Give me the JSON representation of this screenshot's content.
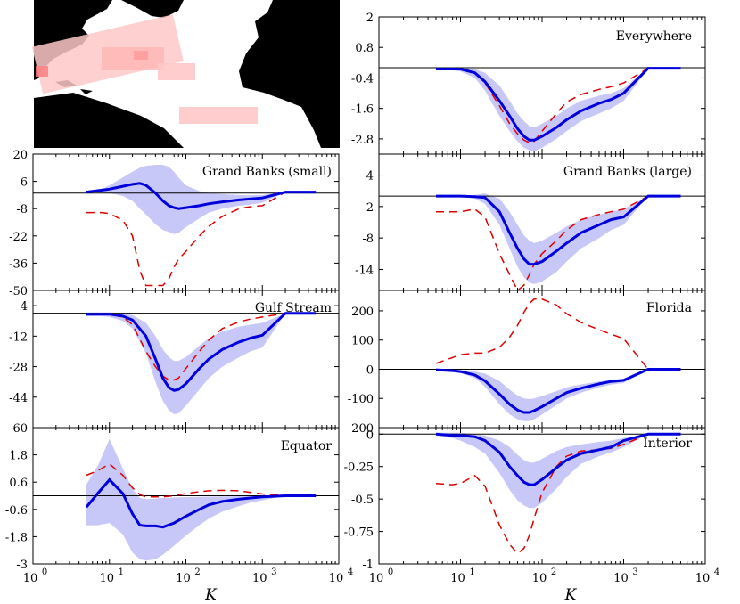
{
  "figure": {
    "map_panel": {
      "land_color": "#000000",
      "sea_color": "#ffffff",
      "region_color": "#ffc8c8",
      "regions": [
        "Everywhere",
        "Grand Banks (large)",
        "Grand Banks (small)",
        "Gulf Stream",
        "Florida",
        "Equator"
      ]
    },
    "colors": {
      "model": "#0000dd",
      "band": "#c8c8f8",
      "dashed": "#dd0000",
      "axis": "#000000"
    },
    "xlabel": "K",
    "x_ticks": [
      {
        "value": 1,
        "base": "10",
        "exp": "0"
      },
      {
        "value": 10,
        "base": "10",
        "exp": "1"
      },
      {
        "value": 100,
        "base": "10",
        "exp": "2"
      },
      {
        "value": 1000,
        "base": "10",
        "exp": "3"
      },
      {
        "value": 10000,
        "base": "10",
        "exp": "4"
      }
    ]
  },
  "chart_data": [
    {
      "type": "line",
      "title": "Everywhere",
      "xscale": "log",
      "xlim": [
        1,
        10000
      ],
      "ylim": [
        -3.4,
        2
      ],
      "yticks": [
        {
          "v": 2,
          "label": "2"
        },
        {
          "v": 0.8,
          "label": "0.8"
        },
        {
          "v": -0.4,
          "label": "-0.4"
        },
        {
          "v": -1.6,
          "label": "-1.6"
        },
        {
          "v": -2.8,
          "label": "-2.8"
        }
      ],
      "x": [
        5,
        8,
        10,
        15,
        20,
        30,
        40,
        50,
        60,
        70,
        80,
        100,
        150,
        200,
        300,
        500,
        700,
        1000,
        2000,
        5000
      ],
      "series": [
        {
          "role": "mean",
          "values": [
            -0.05,
            -0.05,
            -0.05,
            -0.2,
            -0.55,
            -1.3,
            -1.9,
            -2.4,
            -2.7,
            -2.85,
            -2.85,
            -2.7,
            -2.35,
            -2.05,
            -1.7,
            -1.4,
            -1.25,
            -1.0,
            -0.02,
            -0.02
          ]
        },
        {
          "role": "band_upper",
          "values": [
            0,
            0,
            0,
            -0.05,
            -0.2,
            -0.7,
            -1.3,
            -1.8,
            -2.1,
            -2.3,
            -2.35,
            -2.2,
            -1.9,
            -1.6,
            -1.3,
            -1.1,
            -1.0,
            -0.8,
            0,
            0
          ]
        },
        {
          "role": "band_lower",
          "values": [
            -0.1,
            -0.1,
            -0.15,
            -0.4,
            -0.9,
            -1.9,
            -2.5,
            -2.9,
            -3.15,
            -3.25,
            -3.3,
            -3.15,
            -2.8,
            -2.5,
            -2.1,
            -1.8,
            -1.6,
            -1.3,
            -0.05,
            -0.05
          ]
        },
        {
          "role": "dashed",
          "values": [
            -0.05,
            -0.05,
            -0.05,
            -0.2,
            -0.6,
            -1.5,
            -2.2,
            -2.6,
            -2.85,
            -2.95,
            -2.9,
            -2.5,
            -1.8,
            -1.35,
            -1.05,
            -0.85,
            -0.75,
            -0.6,
            -0.02,
            -0.02
          ]
        }
      ]
    },
    {
      "type": "line",
      "title": "Grand Banks (small)",
      "xscale": "log",
      "xlim": [
        1,
        10000
      ],
      "ylim": [
        -50,
        20
      ],
      "yticks": [
        {
          "v": 20,
          "label": "20"
        },
        {
          "v": 6,
          "label": "6"
        },
        {
          "v": -8,
          "label": "-8"
        },
        {
          "v": -22,
          "label": "-22"
        },
        {
          "v": -36,
          "label": "-36"
        },
        {
          "v": -50,
          "label": "-50"
        }
      ],
      "x": [
        5,
        8,
        10,
        15,
        20,
        25,
        30,
        40,
        50,
        60,
        70,
        80,
        100,
        150,
        200,
        300,
        500,
        700,
        1000,
        2000,
        5000
      ],
      "series": [
        {
          "role": "mean",
          "values": [
            0.5,
            1.5,
            2,
            3.5,
            4.5,
            5,
            4,
            0,
            -4,
            -6.5,
            -7.5,
            -8,
            -7.5,
            -6.5,
            -5.5,
            -4.5,
            -3.5,
            -3,
            -2.5,
            0.5,
            0.5
          ]
        },
        {
          "role": "band_upper",
          "values": [
            0.5,
            2,
            4,
            8,
            11,
            13,
            14,
            14.5,
            14.5,
            13.5,
            11,
            8,
            4,
            1,
            0,
            -0.5,
            -1,
            -1.2,
            -1,
            0.5,
            0.5
          ]
        },
        {
          "role": "band_lower",
          "values": [
            0.5,
            0.5,
            0,
            -1.5,
            -4,
            -8,
            -11,
            -16,
            -19,
            -20,
            -21,
            -20.5,
            -17.5,
            -13,
            -10,
            -8,
            -6.5,
            -6,
            -5,
            0.5,
            0.5
          ]
        },
        {
          "role": "dashed",
          "values": [
            -10,
            -10,
            -10.5,
            -14,
            -22,
            -40,
            -47.5,
            -47.5,
            -47.5,
            -44,
            -38,
            -34,
            -30,
            -22,
            -17,
            -12,
            -8,
            -7,
            -6.5,
            0.5,
            0.5
          ]
        }
      ]
    },
    {
      "type": "line",
      "title": "Grand Banks (large)",
      "xscale": "log",
      "xlim": [
        1,
        10000
      ],
      "ylim": [
        -18,
        8
      ],
      "yticks": [
        {
          "v": 4,
          "label": "4"
        },
        {
          "v": -2,
          "label": "-2"
        },
        {
          "v": -8,
          "label": "-8"
        },
        {
          "v": -14,
          "label": "-14"
        }
      ],
      "x": [
        5,
        8,
        10,
        15,
        20,
        30,
        40,
        50,
        60,
        70,
        80,
        100,
        150,
        200,
        300,
        500,
        700,
        1000,
        2000,
        5000
      ],
      "series": [
        {
          "role": "mean",
          "values": [
            0,
            0,
            0,
            -0.1,
            -0.3,
            -3,
            -7,
            -10,
            -12,
            -13,
            -13,
            -12.5,
            -10.5,
            -9,
            -7,
            -5.5,
            -4.5,
            -4,
            0,
            0
          ]
        },
        {
          "role": "band_upper",
          "values": [
            0,
            0,
            0,
            0.2,
            0.5,
            -0.5,
            -3,
            -5.5,
            -7.5,
            -8.5,
            -9,
            -8.5,
            -7,
            -5.8,
            -4.5,
            -3.5,
            -3,
            -2.5,
            0,
            0
          ]
        },
        {
          "role": "band_lower",
          "values": [
            0,
            0,
            -0.1,
            -0.5,
            -1.5,
            -5.5,
            -10,
            -13.5,
            -15.5,
            -16.5,
            -16.8,
            -16.3,
            -14.5,
            -12.5,
            -10,
            -8,
            -6.5,
            -5.5,
            0,
            0
          ]
        },
        {
          "role": "dashed",
          "values": [
            -3,
            -3,
            -3,
            -2.5,
            -4,
            -11,
            -15,
            -18,
            -17,
            -15,
            -13,
            -11,
            -8.5,
            -6.5,
            -4.5,
            -3.5,
            -3,
            -2.5,
            0,
            0
          ]
        }
      ]
    },
    {
      "type": "line",
      "title": "Gulf Stream",
      "xscale": "log",
      "xlim": [
        1,
        10000
      ],
      "ylim": [
        -60,
        12
      ],
      "yticks": [
        {
          "v": 4,
          "label": "4"
        },
        {
          "v": -12,
          "label": "-12"
        },
        {
          "v": -28,
          "label": "-28"
        },
        {
          "v": -44,
          "label": "-44"
        },
        {
          "v": -60,
          "label": "-60"
        }
      ],
      "x": [
        5,
        8,
        10,
        15,
        20,
        30,
        40,
        50,
        60,
        70,
        80,
        100,
        150,
        200,
        300,
        500,
        700,
        1000,
        2000,
        5000
      ],
      "series": [
        {
          "role": "mean",
          "values": [
            -0.5,
            -0.5,
            -0.5,
            -1.5,
            -3.5,
            -12,
            -24,
            -34,
            -39,
            -40.5,
            -40,
            -37,
            -29,
            -24,
            -19,
            -15,
            -13,
            -11.5,
            0,
            0
          ]
        },
        {
          "role": "band_upper",
          "values": [
            0.5,
            0.5,
            0.5,
            0,
            -1,
            -5,
            -12,
            -19,
            -23,
            -25,
            -25,
            -23,
            -17,
            -13,
            -9.5,
            -7,
            -6,
            -5,
            0,
            0
          ]
        },
        {
          "role": "band_lower",
          "values": [
            -1.5,
            -1.5,
            -2,
            -4,
            -8,
            -21,
            -36,
            -46,
            -51,
            -53,
            -52.5,
            -48.5,
            -40,
            -34,
            -28,
            -23,
            -20,
            -18,
            0,
            0
          ]
        },
        {
          "role": "dashed",
          "values": [
            -0.5,
            -0.5,
            -0.5,
            -2,
            -6,
            -20,
            -28,
            -33,
            -35,
            -35,
            -34,
            -29,
            -20,
            -14,
            -8,
            -4.5,
            -3,
            -2,
            0,
            0
          ]
        }
      ]
    },
    {
      "type": "line",
      "title": "Florida",
      "xscale": "log",
      "xlim": [
        1,
        10000
      ],
      "ylim": [
        -200,
        270
      ],
      "yticks": [
        {
          "v": 200,
          "label": "200"
        },
        {
          "v": 100,
          "label": "100"
        },
        {
          "v": 0,
          "label": "0"
        },
        {
          "v": -100,
          "label": "-100"
        },
        {
          "v": -200,
          "label": "-200"
        }
      ],
      "x": [
        5,
        8,
        10,
        15,
        20,
        30,
        40,
        50,
        60,
        70,
        80,
        100,
        150,
        200,
        300,
        500,
        700,
        1000,
        2000,
        5000
      ],
      "series": [
        {
          "role": "mean",
          "values": [
            -2,
            -5,
            -8,
            -20,
            -40,
            -85,
            -120,
            -140,
            -148,
            -148,
            -142,
            -128,
            -100,
            -80,
            -65,
            -50,
            -42,
            -38,
            0,
            0
          ]
        },
        {
          "role": "band_upper",
          "values": [
            -1,
            -2,
            -3,
            -8,
            -15,
            -40,
            -70,
            -90,
            -100,
            -102,
            -100,
            -92,
            -75,
            -62,
            -52,
            -42,
            -36,
            -32,
            0,
            0
          ]
        },
        {
          "role": "band_lower",
          "values": [
            -3,
            -8,
            -13,
            -30,
            -60,
            -120,
            -155,
            -172,
            -178,
            -178,
            -172,
            -155,
            -123,
            -100,
            -80,
            -62,
            -53,
            -47,
            0,
            0
          ]
        },
        {
          "role": "dashed",
          "values": [
            20,
            40,
            50,
            55,
            55,
            75,
            110,
            150,
            195,
            225,
            240,
            240,
            220,
            190,
            160,
            135,
            120,
            105,
            0,
            0
          ]
        }
      ]
    },
    {
      "type": "line",
      "title": "Equator",
      "xscale": "log",
      "xlim": [
        1,
        10000
      ],
      "ylim": [
        -3,
        3
      ],
      "yticks": [
        {
          "v": 1.8,
          "label": "1.8"
        },
        {
          "v": 0.6,
          "label": "0.6"
        },
        {
          "v": -0.6,
          "label": "-0.6"
        },
        {
          "v": -1.8,
          "label": "-1.8"
        },
        {
          "v": -3,
          "label": "-3"
        }
      ],
      "x": [
        5,
        7,
        10,
        15,
        20,
        25,
        30,
        40,
        50,
        70,
        100,
        150,
        200,
        300,
        500,
        700,
        1000,
        2000,
        5000
      ],
      "series": [
        {
          "role": "mean",
          "values": [
            -0.5,
            0.1,
            0.7,
            0.1,
            -0.8,
            -1.3,
            -1.33,
            -1.33,
            -1.38,
            -1.2,
            -0.9,
            -0.6,
            -0.4,
            -0.25,
            -0.15,
            -0.1,
            -0.05,
            0,
            0
          ]
        },
        {
          "role": "band_upper",
          "values": [
            0.5,
            1.3,
            2.5,
            1.2,
            0.3,
            -0.1,
            -0.15,
            -0.12,
            -0.1,
            -0.08,
            -0.06,
            -0.05,
            -0.04,
            -0.03,
            -0.02,
            -0.02,
            -0.01,
            0,
            0
          ]
        },
        {
          "role": "band_lower",
          "values": [
            -1.3,
            -1.3,
            -1.2,
            -1.7,
            -2.5,
            -2.8,
            -2.85,
            -2.8,
            -2.6,
            -2.2,
            -1.75,
            -1.3,
            -1.0,
            -0.7,
            -0.45,
            -0.3,
            -0.2,
            0,
            0
          ]
        },
        {
          "role": "dashed",
          "values": [
            0.9,
            1.1,
            1.4,
            0.9,
            0.35,
            0.05,
            -0.05,
            -0.05,
            -0.05,
            0.0,
            0.1,
            0.18,
            0.22,
            0.24,
            0.22,
            0.15,
            0.08,
            0,
            0
          ]
        }
      ]
    },
    {
      "type": "line",
      "title": "Interior",
      "xscale": "log",
      "xlim": [
        1,
        10000
      ],
      "ylim": [
        -1,
        0.05
      ],
      "yticks": [
        {
          "v": 0,
          "label": "0"
        },
        {
          "v": -0.25,
          "label": "-0.25"
        },
        {
          "v": -0.5,
          "label": "-0.5"
        },
        {
          "v": -0.75,
          "label": "-0.75"
        },
        {
          "v": -1,
          "label": "-1"
        }
      ],
      "x": [
        5,
        8,
        10,
        15,
        20,
        30,
        40,
        50,
        60,
        70,
        80,
        100,
        150,
        200,
        300,
        500,
        700,
        1000,
        2000,
        5000
      ],
      "series": [
        {
          "role": "mean",
          "values": [
            0,
            -0.01,
            -0.01,
            -0.02,
            -0.05,
            -0.14,
            -0.25,
            -0.32,
            -0.37,
            -0.39,
            -0.39,
            -0.35,
            -0.26,
            -0.2,
            -0.15,
            -0.12,
            -0.1,
            -0.05,
            0,
            0
          ]
        },
        {
          "role": "band_upper",
          "values": [
            0.01,
            0.01,
            0.01,
            0,
            -0.01,
            -0.05,
            -0.1,
            -0.16,
            -0.2,
            -0.22,
            -0.22,
            -0.19,
            -0.13,
            -0.1,
            -0.08,
            -0.06,
            -0.05,
            -0.03,
            0,
            0
          ]
        },
        {
          "role": "band_lower",
          "values": [
            -0.01,
            -0.03,
            -0.05,
            -0.1,
            -0.15,
            -0.3,
            -0.43,
            -0.51,
            -0.55,
            -0.57,
            -0.57,
            -0.53,
            -0.42,
            -0.33,
            -0.23,
            -0.17,
            -0.14,
            -0.1,
            0,
            0
          ]
        },
        {
          "role": "dashed",
          "values": [
            -0.38,
            -0.39,
            -0.38,
            -0.32,
            -0.4,
            -0.7,
            -0.85,
            -0.92,
            -0.88,
            -0.78,
            -0.65,
            -0.45,
            -0.25,
            -0.17,
            -0.13,
            -0.12,
            -0.11,
            -0.08,
            0,
            0
          ]
        }
      ]
    }
  ]
}
